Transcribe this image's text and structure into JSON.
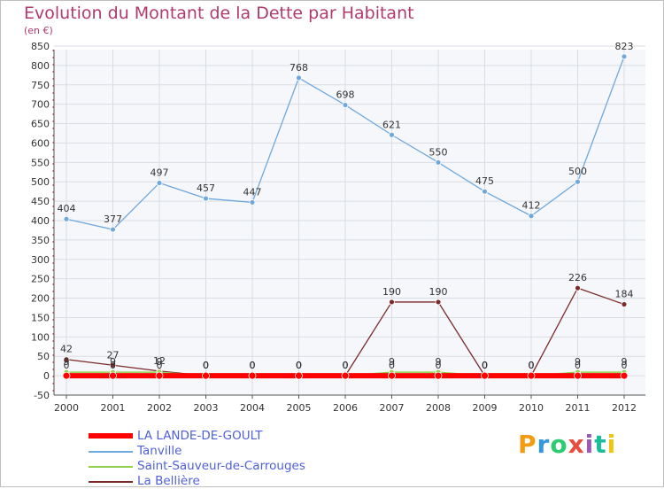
{
  "chart_data": {
    "type": "line",
    "title": "Evolution du Montant de la Dette par Habitant",
    "subtitle": "(en €)",
    "x": [
      2000,
      2001,
      2002,
      2003,
      2004,
      2005,
      2006,
      2007,
      2008,
      2009,
      2010,
      2011,
      2012
    ],
    "ylim": [
      -50,
      850
    ],
    "yticks": [
      -50,
      0,
      50,
      100,
      150,
      200,
      250,
      300,
      350,
      400,
      450,
      500,
      550,
      600,
      650,
      700,
      750,
      800,
      850
    ],
    "grid": true,
    "legend_position": "bottom-left",
    "series": [
      {
        "name": "Tanville",
        "color": "#6fa8dc",
        "values": [
          404,
          377,
          497,
          457,
          447,
          768,
          698,
          621,
          550,
          475,
          412,
          500,
          823
        ],
        "labels": [
          "404",
          "377",
          "497",
          "457",
          "447",
          "768",
          "698",
          "621",
          "550",
          "475",
          "412",
          "500",
          "823"
        ]
      },
      {
        "name": "La Bellière",
        "color": "#7b2a2a",
        "values": [
          42,
          27,
          12,
          0,
          0,
          0,
          0,
          190,
          190,
          0,
          0,
          226,
          184
        ],
        "labels": [
          "42",
          "27",
          "12",
          "0",
          "0",
          "0",
          "0",
          "190",
          "190",
          "0",
          "0",
          "226",
          "184"
        ]
      },
      {
        "name": "Saint-Sauveur-de-Carrouges",
        "color": "#8fd14f",
        "values": [
          9,
          9,
          9,
          0,
          0,
          0,
          0,
          9,
          9,
          0,
          0,
          9,
          9
        ],
        "labels": [
          "9",
          "9",
          "9",
          "0",
          "0",
          "0",
          "0",
          "9",
          "9",
          "0",
          "0",
          "9",
          "9"
        ]
      },
      {
        "name": "LA LANDE-DE-GOULT",
        "color": "#ff0000",
        "values": [
          0,
          0,
          0,
          0,
          0,
          0,
          0,
          0,
          0,
          0,
          0,
          0,
          0
        ],
        "labels": [
          "0",
          "0",
          "0",
          "0",
          "0",
          "0",
          "0",
          "0",
          "0",
          "0",
          "0",
          "0",
          "0"
        ]
      }
    ],
    "legend": [
      {
        "name": "LA LANDE-DE-GOULT",
        "color": "#ff0000"
      },
      {
        "name": "Tanville",
        "color": "#6fa8dc"
      },
      {
        "name": "Saint-Sauveur-de-Carrouges",
        "color": "#8fd14f"
      },
      {
        "name": "La Bellière",
        "color": "#7b2a2a"
      }
    ]
  },
  "brand": {
    "letters": [
      "P",
      "r",
      "o",
      "x",
      "i",
      "t",
      "i"
    ],
    "colors": [
      "#f39c12",
      "#3498db",
      "#2ecc71",
      "#e74c3c",
      "#9b59b6",
      "#1abc9c",
      "#f1c40f"
    ]
  }
}
